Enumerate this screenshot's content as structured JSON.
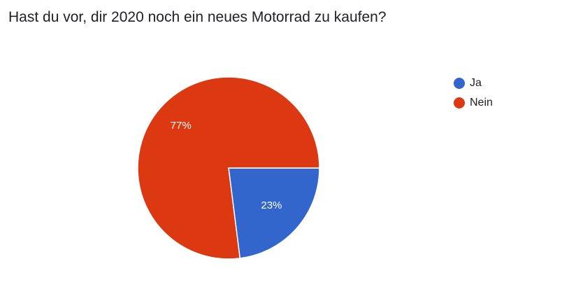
{
  "chart_data": {
    "type": "pie",
    "title": "Hast du vor, dir 2020 noch ein neues Motorrad zu kaufen?",
    "slices": [
      {
        "label": "Ja",
        "value": 23,
        "display": "23%",
        "color": "#3366cc"
      },
      {
        "label": "Nein",
        "value": 77,
        "display": "77%",
        "color": "#dc3912"
      }
    ],
    "legend_position": "right"
  }
}
